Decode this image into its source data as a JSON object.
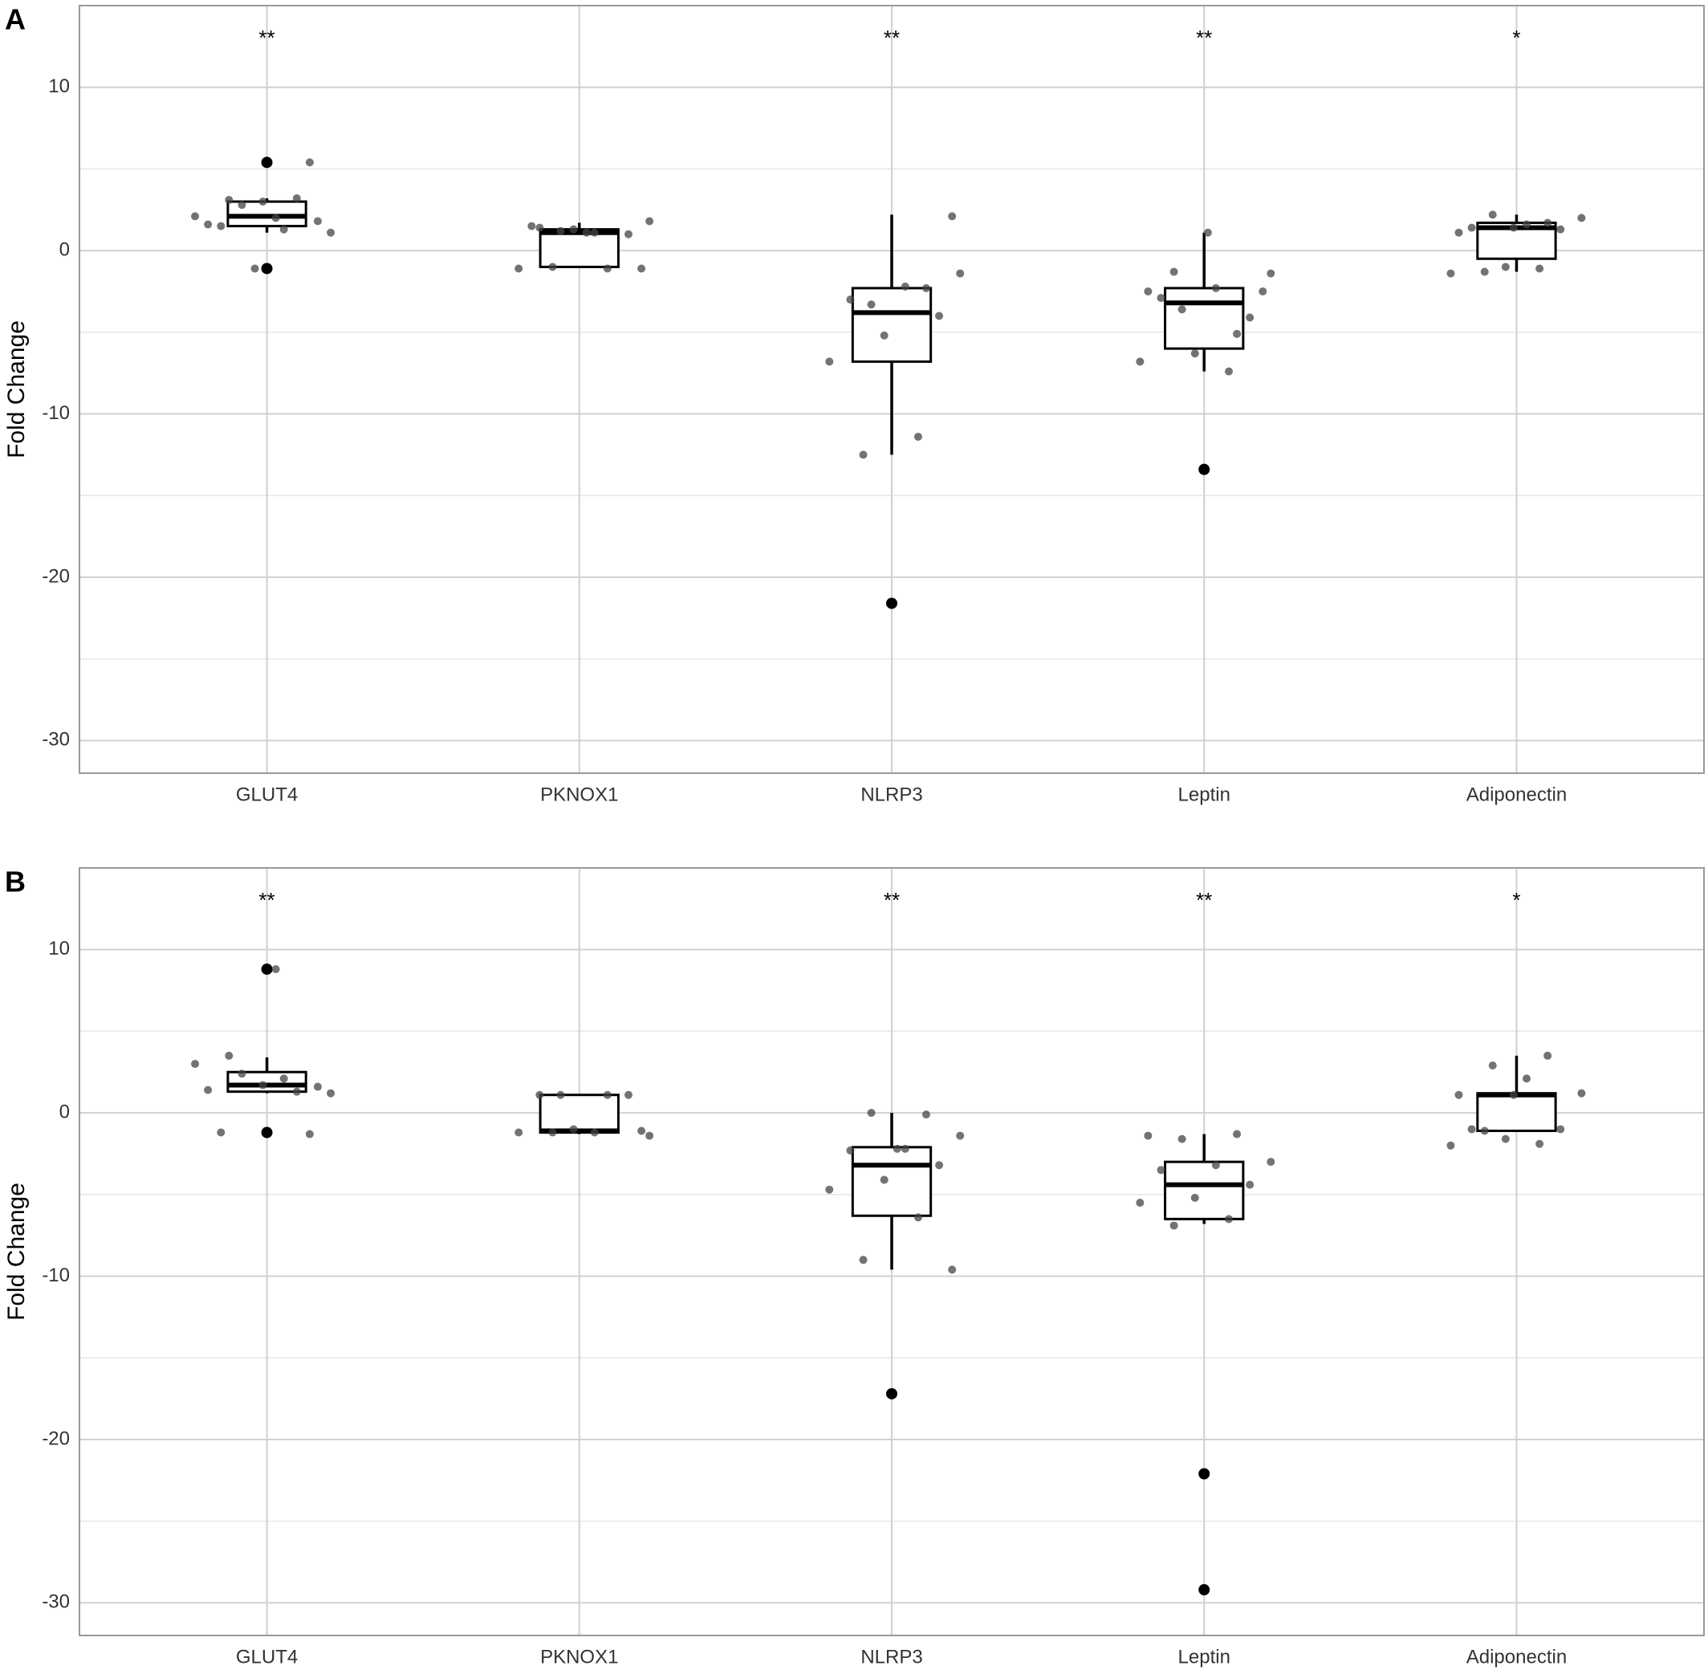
{
  "chart_data": [
    {
      "type": "box",
      "label": "A",
      "ylabel": "Fold Change",
      "categories": [
        "GLUT4",
        "PKNOX1",
        "NLRP3",
        "Leptin",
        "Adiponectin"
      ],
      "annotations": [
        "**",
        null,
        "**",
        "**",
        "*"
      ],
      "ylim": [
        -32,
        15
      ],
      "yticks": [
        -30,
        -20,
        -10,
        0,
        10
      ],
      "grid": true,
      "boxes": [
        {
          "q1": 1.5,
          "median": 2.1,
          "q3": 3.0,
          "whisker_low": 1.1,
          "whisker_high": 3.2,
          "outliers": [
            5.4,
            -1.1
          ],
          "points": [
            2.1,
            1.3,
            3.1,
            1.8,
            3.0,
            1.6,
            3.2,
            2.8,
            1.1,
            2.0,
            1.5,
            5.4,
            -1.1
          ]
        },
        {
          "q1": -1.0,
          "median": 1.1,
          "q3": 1.3,
          "whisker_low": -1.0,
          "whisker_high": 1.7,
          "outliers": [],
          "points": [
            1.2,
            1.8,
            1.1,
            1.4,
            1.0,
            1.3,
            -1.1,
            -1.1,
            -1.0,
            -1.1,
            1.1,
            1.5
          ]
        },
        {
          "q1": -6.8,
          "median": -3.8,
          "q3": -2.3,
          "whisker_low": -12.5,
          "whisker_high": 2.2,
          "outliers": [
            -21.6
          ],
          "points": [
            -2.3,
            -3.3,
            -1.4,
            -2.2,
            -3.0,
            -4.0,
            -5.2,
            -6.8,
            -11.4,
            -12.5,
            2.1
          ]
        },
        {
          "q1": -6.0,
          "median": -3.2,
          "q3": -2.3,
          "whisker_low": -7.4,
          "whisker_high": 1.1,
          "outliers": [
            -13.4
          ],
          "points": [
            -2.5,
            -5.1,
            -3.6,
            -1.4,
            -2.3,
            -2.9,
            -4.1,
            -6.3,
            -6.8,
            -7.4,
            -1.3,
            -2.5,
            1.1
          ]
        },
        {
          "q1": -0.5,
          "median": 1.4,
          "q3": 1.7,
          "whisker_low": -1.3,
          "whisker_high": 2.2,
          "outliers": [],
          "points": [
            1.4,
            1.1,
            1.7,
            2.2,
            2.0,
            1.6,
            1.4,
            1.3,
            -1.0,
            -1.4,
            -1.1,
            -1.3
          ]
        }
      ]
    },
    {
      "type": "box",
      "label": "B",
      "ylabel": "Fold Change",
      "categories": [
        "GLUT4",
        "PKNOX1",
        "NLRP3",
        "Leptin",
        "Adiponectin"
      ],
      "annotations": [
        "**",
        null,
        "**",
        "**",
        "*"
      ],
      "ylim": [
        -32,
        15
      ],
      "yticks": [
        -30,
        -20,
        -10,
        0,
        10
      ],
      "grid": true,
      "boxes": [
        {
          "q1": 1.3,
          "median": 1.7,
          "q3": 2.5,
          "whisker_low": 1.2,
          "whisker_high": 3.4,
          "outliers": [
            8.8,
            -1.2
          ],
          "points": [
            3.0,
            2.1,
            3.5,
            1.6,
            1.7,
            1.4,
            1.3,
            2.4,
            1.2,
            8.8,
            -1.2,
            -1.3
          ]
        },
        {
          "q1": -1.2,
          "median": -1.1,
          "q3": 1.1,
          "whisker_low": -1.3,
          "whisker_high": 1.1,
          "outliers": [],
          "points": [
            1.1,
            -1.4,
            -1.2,
            1.1,
            1.1,
            -1.0,
            -1.2,
            1.1,
            -1.2,
            -1.1
          ]
        },
        {
          "q1": -6.3,
          "median": -3.2,
          "q3": -2.1,
          "whisker_low": -9.6,
          "whisker_high": 0,
          "outliers": [
            -17.2
          ],
          "points": [
            -0.1,
            0.0,
            -1.4,
            -2.2,
            -2.3,
            -3.2,
            -4.1,
            -4.7,
            -6.4,
            -9.0,
            -9.6,
            -2.2
          ]
        },
        {
          "q1": -6.5,
          "median": -4.4,
          "q3": -3.0,
          "whisker_low": -6.8,
          "whisker_high": -1.3,
          "outliers": [
            -22.1,
            -29.2
          ],
          "points": [
            -1.4,
            -1.3,
            -1.6,
            -3.0,
            -3.2,
            -3.5,
            -4.4,
            -5.2,
            -5.5,
            -6.5,
            -6.9
          ]
        },
        {
          "q1": -1.1,
          "median": 1.1,
          "q3": 1.2,
          "whisker_low": -1.1,
          "whisker_high": 3.5,
          "outliers": [],
          "points": [
            1.1,
            1.1,
            3.5,
            2.9,
            1.2,
            2.1,
            -1.0,
            -1.0,
            -1.6,
            -2.0,
            -1.9,
            -1.1
          ]
        }
      ]
    }
  ]
}
